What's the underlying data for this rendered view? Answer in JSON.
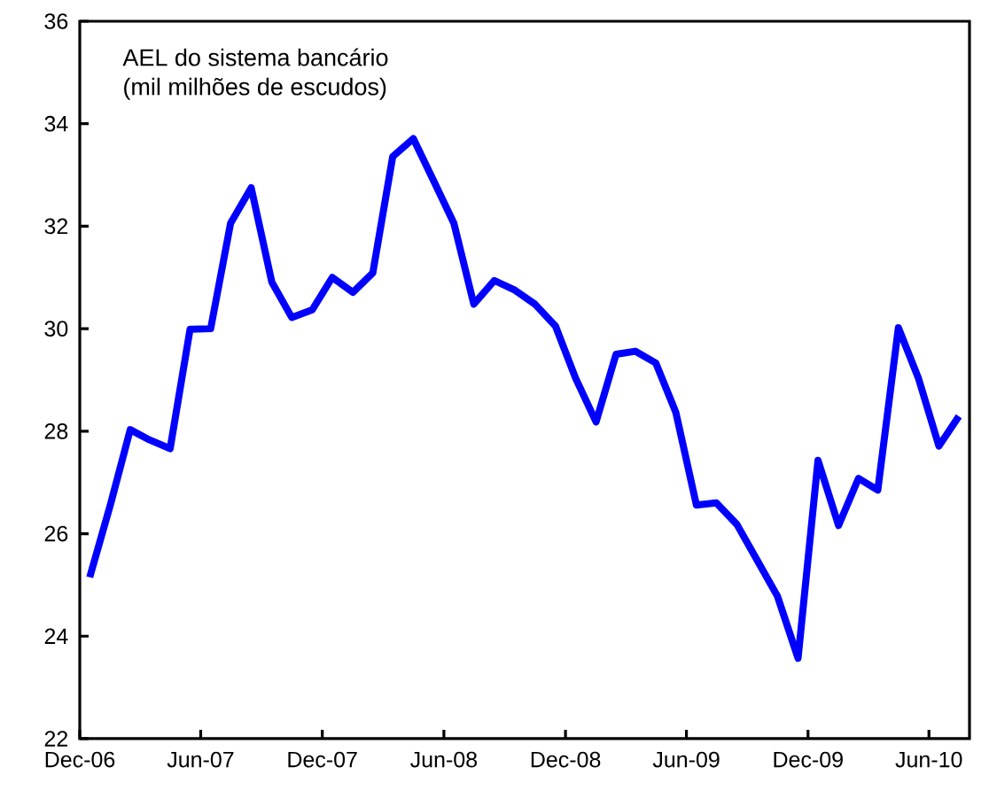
{
  "chart_data": {
    "type": "line",
    "title": "AEL do sistema bancário",
    "subtitle": "(mil milhões de escudos)",
    "x": [
      "2006-12-16",
      "2007-01-16",
      "2007-02-15",
      "2007-03-16",
      "2007-04-16",
      "2007-05-16",
      "2007-06-16",
      "2007-07-16",
      "2007-08-16",
      "2007-09-16",
      "2007-10-16",
      "2007-11-16",
      "2007-12-16",
      "2008-01-16",
      "2008-02-15",
      "2008-03-16",
      "2008-04-16",
      "2008-05-16",
      "2008-06-16",
      "2008-07-16",
      "2008-08-16",
      "2008-09-16",
      "2008-10-16",
      "2008-11-16",
      "2008-12-16",
      "2009-01-16",
      "2009-02-15",
      "2009-03-16",
      "2009-04-16",
      "2009-05-16",
      "2009-06-16",
      "2009-07-16",
      "2009-08-16",
      "2009-09-16",
      "2009-10-16",
      "2009-11-16",
      "2009-12-16",
      "2010-01-16",
      "2010-02-15",
      "2010-03-16",
      "2010-04-16",
      "2010-05-16",
      "2010-06-16",
      "2010-07-16"
    ],
    "series": [
      {
        "color": "#0000ff",
        "values": [
          25.15,
          26.56,
          28.03,
          27.83,
          27.66,
          29.99,
          30.0,
          32.06,
          32.75,
          30.91,
          30.22,
          30.37,
          31.0,
          30.71,
          31.09,
          33.36,
          33.71,
          32.9,
          32.06,
          30.48,
          30.94,
          30.75,
          30.48,
          30.05,
          29.04,
          28.18,
          29.5,
          29.56,
          29.33,
          28.37,
          26.56,
          26.6,
          26.18,
          25.47,
          24.78,
          23.57,
          27.43,
          26.16,
          27.08,
          26.85,
          30.02,
          29.04,
          27.71,
          28.29
        ]
      }
    ],
    "xlim": [
      "2006-12",
      "2010-08"
    ],
    "ylim": [
      22,
      36
    ],
    "xticks": [
      {
        "value": "2006-12",
        "label": "Dec-06"
      },
      {
        "value": "2007-06",
        "label": "Jun-07"
      },
      {
        "value": "2007-12",
        "label": "Dec-07"
      },
      {
        "value": "2008-06",
        "label": "Jun-08"
      },
      {
        "value": "2008-12",
        "label": "Dec-08"
      },
      {
        "value": "2009-06",
        "label": "Jun-09"
      },
      {
        "value": "2009-12",
        "label": "Dec-09"
      },
      {
        "value": "2010-06",
        "label": "Jun-10"
      }
    ],
    "yticks": [
      22,
      24,
      26,
      28,
      30,
      32,
      34,
      36
    ],
    "grid": false,
    "legend": false,
    "marker": "none",
    "line_style": "solid"
  }
}
